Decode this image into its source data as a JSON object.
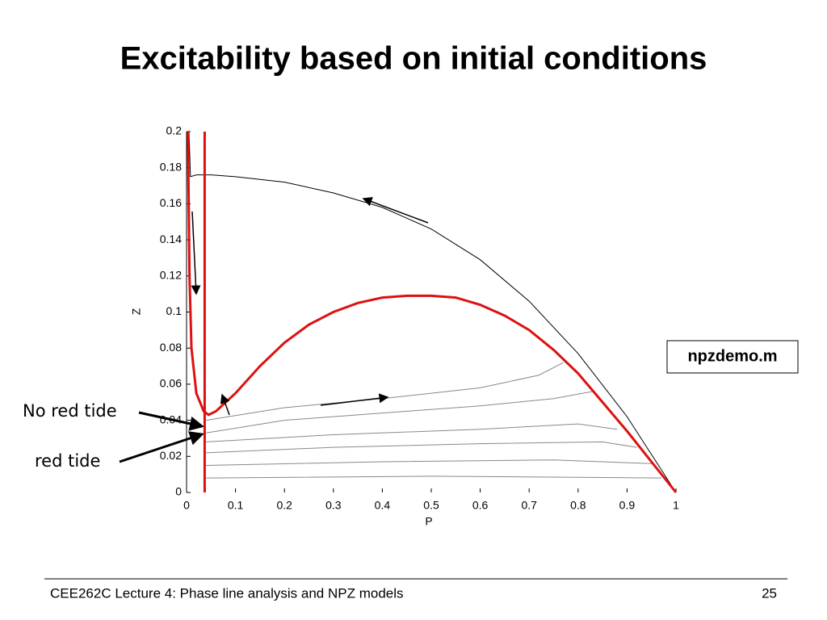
{
  "chart_data": {
    "type": "line",
    "title": "Excitability based on initial conditions",
    "xlabel": "P",
    "ylabel": "Z",
    "xlim": [
      0,
      1
    ],
    "ylim": [
      0,
      0.2
    ],
    "xticks": [
      0,
      0.1,
      0.2,
      0.3,
      0.4,
      0.5,
      0.6,
      0.7,
      0.8,
      0.9,
      1
    ],
    "yticks": [
      0,
      0.02,
      0.04,
      0.06,
      0.08,
      0.1,
      0.12,
      0.14,
      0.16,
      0.18,
      0.2
    ],
    "annotations": [
      "No red tide",
      "red tide",
      "npzdemo.m"
    ],
    "series": [
      {
        "color": "#888888",
        "x": [
          0.04,
          0.2,
          0.4,
          0.6,
          0.72,
          0.77
        ],
        "values": [
          0.04,
          0.047,
          0.052,
          0.058,
          0.065,
          0.072
        ]
      },
      {
        "color": "#888888",
        "x": [
          0.04,
          0.2,
          0.4,
          0.6,
          0.75,
          0.83
        ],
        "values": [
          0.033,
          0.04,
          0.044,
          0.048,
          0.052,
          0.056
        ]
      },
      {
        "color": "#888888",
        "x": [
          0.04,
          0.3,
          0.6,
          0.8,
          0.88
        ],
        "values": [
          0.028,
          0.032,
          0.035,
          0.038,
          0.035
        ]
      },
      {
        "color": "#888888",
        "x": [
          0.04,
          0.3,
          0.6,
          0.85,
          0.92
        ],
        "values": [
          0.022,
          0.025,
          0.027,
          0.028,
          0.025
        ]
      },
      {
        "color": "#888888",
        "x": [
          0.04,
          0.4,
          0.75,
          0.95
        ],
        "values": [
          0.015,
          0.017,
          0.018,
          0.016
        ]
      },
      {
        "color": "#888888",
        "x": [
          0.04,
          0.5,
          0.97
        ],
        "values": [
          0.008,
          0.009,
          0.008
        ]
      },
      {
        "color": "#000000",
        "x": [
          0.005,
          0.008,
          0.02,
          0.05,
          0.1,
          0.2,
          0.3,
          0.4,
          0.5,
          0.6,
          0.7,
          0.8,
          0.9,
          1
        ],
        "values": [
          0.2,
          0.175,
          0.176,
          0.176,
          0.175,
          0.172,
          0.166,
          0.158,
          0.146,
          0.129,
          0.106,
          0.077,
          0.042,
          0
        ]
      },
      {
        "color": "#dd1111",
        "x": [
          0.037,
          0.037
        ],
        "values": [
          0,
          0.2
        ]
      },
      {
        "color": "#dd1111",
        "x": [
          0.003,
          0.004,
          0.006,
          0.01,
          0.02,
          0.035,
          0.045,
          0.06,
          0.1,
          0.15,
          0.2,
          0.25,
          0.3,
          0.35,
          0.4,
          0.45,
          0.5,
          0.55,
          0.6,
          0.65,
          0.7,
          0.75,
          0.8,
          0.85,
          0.9,
          0.95,
          1
        ],
        "values": [
          0.2,
          0.17,
          0.12,
          0.08,
          0.055,
          0.045,
          0.043,
          0.045,
          0.055,
          0.07,
          0.083,
          0.093,
          0.1,
          0.105,
          0.108,
          0.109,
          0.109,
          0.108,
          0.104,
          0.098,
          0.09,
          0.079,
          0.066,
          0.05,
          0.034,
          0.017,
          0
        ]
      }
    ]
  },
  "footer": {
    "text": "CEE262C Lecture 4: Phase line analysis and NPZ models",
    "page": "25"
  }
}
